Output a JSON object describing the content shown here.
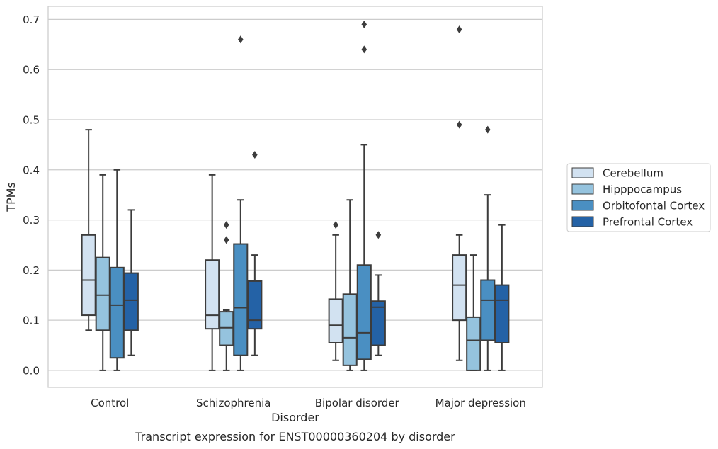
{
  "chart_data": {
    "type": "box",
    "caption": "Transcript expression for ENST00000360204 by disorder",
    "xlabel": "Disorder",
    "ylabel": "TPMs",
    "ylim": [
      -0.034,
      0.726
    ],
    "yticks": [
      0.0,
      0.1,
      0.2,
      0.3,
      0.4,
      0.5,
      0.6,
      0.7
    ],
    "ytick_labels": [
      "0.0",
      "0.1",
      "0.2",
      "0.3",
      "0.4",
      "0.5",
      "0.6",
      "0.7"
    ],
    "grid": "horizontal",
    "legend_position": "right",
    "categories": [
      "Control",
      "Schizophrenia",
      "Bipolar disorder",
      "Major depression"
    ],
    "series": [
      {
        "name": "Cerebellum",
        "color": "#d2e2f1",
        "boxes": [
          {
            "whislo": 0.08,
            "q1": 0.11,
            "med": 0.18,
            "q3": 0.27,
            "whishi": 0.48,
            "fliers": []
          },
          {
            "whislo": 0.0,
            "q1": 0.083,
            "med": 0.11,
            "q3": 0.22,
            "whishi": 0.39,
            "fliers": []
          },
          {
            "whislo": 0.02,
            "q1": 0.055,
            "med": 0.09,
            "q3": 0.142,
            "whishi": 0.27,
            "fliers": [
              0.29
            ]
          },
          {
            "whislo": 0.02,
            "q1": 0.1,
            "med": 0.17,
            "q3": 0.23,
            "whishi": 0.27,
            "fliers": [
              0.49,
              0.68
            ]
          }
        ]
      },
      {
        "name": "Hipppocampus",
        "color": "#95c3de",
        "boxes": [
          {
            "whislo": 0.0,
            "q1": 0.08,
            "med": 0.15,
            "q3": 0.225,
            "whishi": 0.39,
            "fliers": []
          },
          {
            "whislo": 0.0,
            "q1": 0.05,
            "med": 0.085,
            "q3": 0.117,
            "whishi": 0.12,
            "fliers": [
              0.26,
              0.29
            ]
          },
          {
            "whislo": 0.0,
            "q1": 0.01,
            "med": 0.065,
            "q3": 0.152,
            "whishi": 0.34,
            "fliers": []
          },
          {
            "whislo": 0.0,
            "q1": 0.0,
            "med": 0.06,
            "q3": 0.106,
            "whishi": 0.23,
            "fliers": []
          }
        ]
      },
      {
        "name": "Orbitofontal Cortex",
        "color": "#4a8fc2",
        "boxes": [
          {
            "whislo": 0.0,
            "q1": 0.025,
            "med": 0.13,
            "q3": 0.205,
            "whishi": 0.4,
            "fliers": []
          },
          {
            "whislo": 0.0,
            "q1": 0.03,
            "med": 0.125,
            "q3": 0.252,
            "whishi": 0.34,
            "fliers": [
              0.66
            ]
          },
          {
            "whislo": 0.0,
            "q1": 0.022,
            "med": 0.075,
            "q3": 0.21,
            "whishi": 0.45,
            "fliers": [
              0.64,
              0.69
            ]
          },
          {
            "whislo": 0.0,
            "q1": 0.06,
            "med": 0.14,
            "q3": 0.18,
            "whishi": 0.35,
            "fliers": [
              0.48
            ]
          }
        ]
      },
      {
        "name": "Prefrontal Cortex",
        "color": "#2462a6",
        "boxes": [
          {
            "whislo": 0.03,
            "q1": 0.08,
            "med": 0.14,
            "q3": 0.194,
            "whishi": 0.32,
            "fliers": []
          },
          {
            "whislo": 0.03,
            "q1": 0.083,
            "med": 0.1,
            "q3": 0.178,
            "whishi": 0.23,
            "fliers": [
              0.43
            ]
          },
          {
            "whislo": 0.03,
            "q1": 0.05,
            "med": 0.126,
            "q3": 0.138,
            "whishi": 0.19,
            "fliers": [
              0.27
            ]
          },
          {
            "whislo": 0.0,
            "q1": 0.055,
            "med": 0.14,
            "q3": 0.17,
            "whishi": 0.29,
            "fliers": []
          }
        ]
      }
    ]
  }
}
